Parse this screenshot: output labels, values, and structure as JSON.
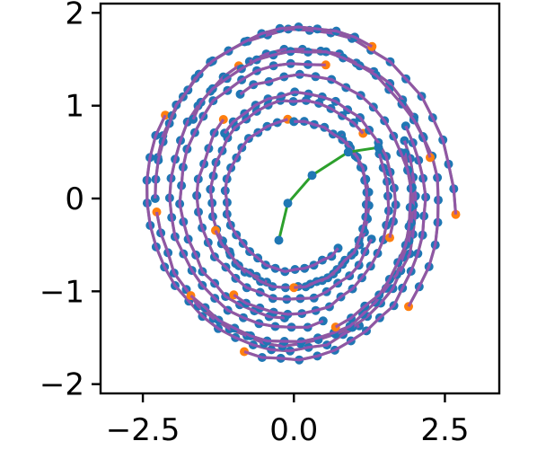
{
  "chart_data": {
    "type": "scatter",
    "title": "",
    "xlabel": "",
    "ylabel": "",
    "xlim": [
      -3.2,
      3.4
    ],
    "ylim": [
      -2.1,
      2.1
    ],
    "grid": false,
    "legend": "none",
    "x_ticks": [
      {
        "value": -2.5,
        "label": "−2.5"
      },
      {
        "value": 0.0,
        "label": "0.0"
      },
      {
        "value": 2.5,
        "label": "2.5"
      }
    ],
    "y_ticks": [
      {
        "value": 2,
        "label": "2"
      },
      {
        "value": 1,
        "label": "1"
      },
      {
        "value": 0,
        "label": "0"
      },
      {
        "value": -1,
        "label": "−1"
      },
      {
        "value": -2,
        "label": "−2"
      }
    ],
    "colors": {
      "ground_truth_points": "#1f77b4",
      "endpoints": "#ff7f0e",
      "ground_truth_line": "#2ca02c",
      "prediction_line": "#9b4fb0"
    },
    "series": [
      {
        "role": "trajectories",
        "start_angle_deg": 40,
        "start_radius": 1.15,
        "sweep_deg": 210,
        "n_points": 26
      },
      {
        "role": "trajectories",
        "start_angle_deg": 75,
        "start_radius": 1.55,
        "sweep_deg": 190,
        "n_points": 24
      },
      {
        "role": "trajectories",
        "start_angle_deg": 115,
        "start_radius": 1.65,
        "sweep_deg": 170,
        "n_points": 22
      },
      {
        "role": "trajectories",
        "start_angle_deg": 150,
        "start_radius": 1.9,
        "sweep_deg": 150,
        "n_points": 20
      },
      {
        "role": "trajectories",
        "start_angle_deg": 185,
        "start_radius": 1.75,
        "sweep_deg": 200,
        "n_points": 26
      },
      {
        "role": "trajectories",
        "start_angle_deg": 220,
        "start_radius": 1.7,
        "sweep_deg": 160,
        "n_points": 22
      },
      {
        "role": "trajectories",
        "start_angle_deg": 250,
        "start_radius": 1.85,
        "sweep_deg": 140,
        "n_points": 20
      },
      {
        "role": "trajectories",
        "start_angle_deg": 290,
        "start_radius": 1.55,
        "sweep_deg": 190,
        "n_points": 24
      },
      {
        "role": "trajectories",
        "start_angle_deg": 320,
        "start_radius": 1.9,
        "sweep_deg": 150,
        "n_points": 20
      },
      {
        "role": "trajectories",
        "start_angle_deg": 355,
        "start_radius": 2.05,
        "sweep_deg": 170,
        "n_points": 22
      },
      {
        "role": "trajectories",
        "start_angle_deg": 15,
        "start_radius": 1.8,
        "sweep_deg": 130,
        "n_points": 18
      },
      {
        "role": "trajectories",
        "start_angle_deg": 95,
        "start_radius": 0.9,
        "sweep_deg": 220,
        "n_points": 26
      },
      {
        "role": "trajectories",
        "start_angle_deg": 200,
        "start_radius": 1.05,
        "sweep_deg": 210,
        "n_points": 24
      },
      {
        "role": "trajectories",
        "start_angle_deg": 270,
        "start_radius": 1.0,
        "sweep_deg": 180,
        "n_points": 22
      },
      {
        "role": "trajectories",
        "start_angle_deg": 60,
        "start_radius": 2.0,
        "sweep_deg": 120,
        "n_points": 18
      },
      {
        "role": "trajectories",
        "start_angle_deg": 135,
        "start_radius": 1.25,
        "sweep_deg": 200,
        "n_points": 24
      },
      {
        "role": "trajectories",
        "start_angle_deg": 235,
        "start_radius": 1.35,
        "sweep_deg": 150,
        "n_points": 20
      },
      {
        "role": "trajectories",
        "start_angle_deg": 340,
        "start_radius": 1.3,
        "sweep_deg": 160,
        "n_points": 20
      }
    ]
  }
}
